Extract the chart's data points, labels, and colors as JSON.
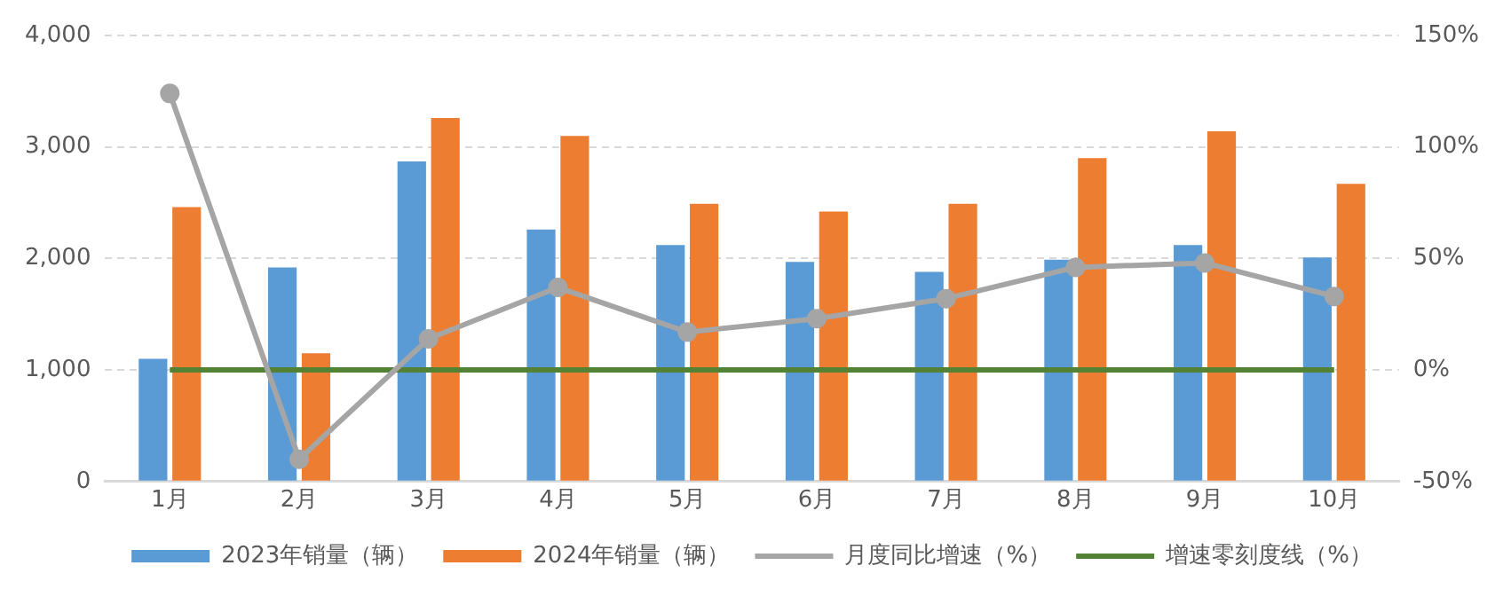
{
  "chart_data": {
    "type": "bar",
    "categories": [
      "1月",
      "2月",
      "3月",
      "4月",
      "5月",
      "6月",
      "7月",
      "8月",
      "9月",
      "10月"
    ],
    "series": [
      {
        "name": "2023年销量（辆）",
        "color": "#5b9bd5",
        "values": [
          1100,
          1920,
          2870,
          2260,
          2120,
          1970,
          1880,
          1990,
          2120,
          2010
        ]
      },
      {
        "name": "2024年销量（辆）",
        "color": "#ed7d31",
        "values": [
          2460,
          1150,
          3260,
          3100,
          2490,
          2420,
          2490,
          2900,
          3140,
          2670
        ]
      },
      {
        "name": "月度同比增速（%）",
        "type": "line",
        "axis": "y2",
        "marker": "circle",
        "color": "#a5a5a5",
        "values": [
          124,
          -40,
          14,
          37,
          17,
          23,
          32,
          46,
          48,
          33
        ]
      },
      {
        "name": "增速零刻度线（%）",
        "type": "line",
        "axis": "y2",
        "marker": "none",
        "color": "#548235",
        "values": [
          0,
          0,
          0,
          0,
          0,
          0,
          0,
          0,
          0,
          0
        ]
      }
    ],
    "ylim": [
      0,
      4000
    ],
    "yticks": [
      0,
      {
        "value": 1000,
        "label": "1,000"
      },
      {
        "value": 2000,
        "label": "2,000"
      },
      {
        "value": 3000,
        "label": "3,000"
      },
      {
        "value": 4000,
        "label": "4,000"
      }
    ],
    "y2lim": [
      -50,
      150
    ],
    "y2ticks": [
      {
        "value": -50,
        "label": "-50%"
      },
      {
        "value": 0,
        "label": "0%"
      },
      {
        "value": 50,
        "label": "50%"
      },
      {
        "value": 100,
        "label": "100%"
      },
      {
        "value": 150,
        "label": "150%"
      }
    ],
    "grid": "y",
    "legend": "bottom"
  }
}
